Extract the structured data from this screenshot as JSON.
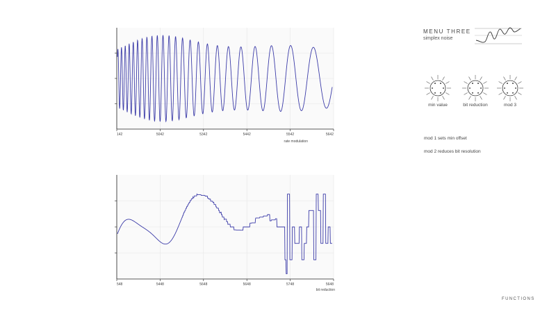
{
  "menu": {
    "title": "MENU THREE",
    "subtitle": "simplex noise"
  },
  "knobs": [
    {
      "label": "min value"
    },
    {
      "label": "bit reduction"
    },
    {
      "label": "mod 3"
    }
  ],
  "descriptions": [
    "mod 1 sets min offset",
    "mod 2 reduces bit resolution"
  ],
  "footer": "FUNCTIONS",
  "chart_data": [
    {
      "type": "line",
      "xlabel": "rate modulation",
      "x_tick_labels": [
        "142",
        "5042",
        "5342",
        "5442",
        "5542",
        "5642"
      ],
      "color": "#3b3ba8",
      "grid": true
    },
    {
      "type": "line",
      "xlabel": "bit reduction",
      "x_tick_labels": [
        "548",
        "5448",
        "5648",
        "5648",
        "5748",
        "5648"
      ],
      "color": "#3b3ba8",
      "grid": true
    }
  ]
}
